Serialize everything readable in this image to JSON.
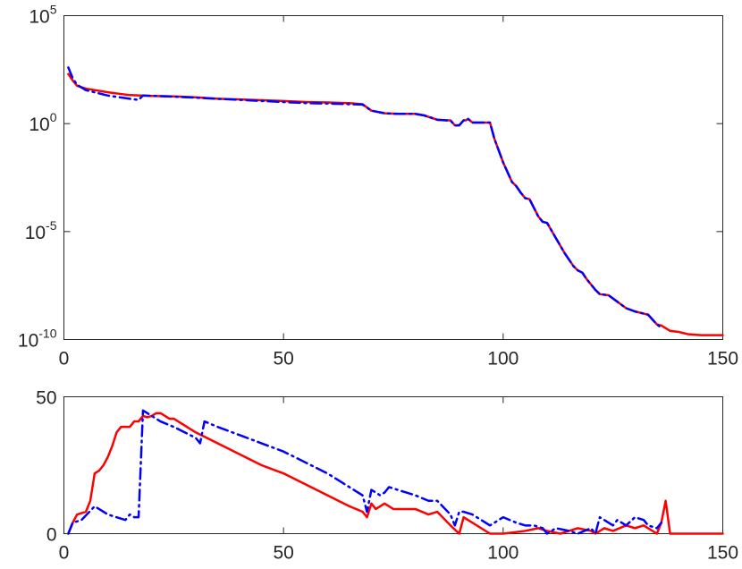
{
  "chart_data": [
    {
      "type": "line",
      "yscale": "log",
      "xlim": [
        0,
        150
      ],
      "ylim_exponent": [
        -10,
        5
      ],
      "x_ticks": [
        "0",
        "50",
        "100",
        "150"
      ],
      "y_ticks": [
        {
          "base": "10",
          "exp": "5"
        },
        {
          "base": "10",
          "exp": "0"
        },
        {
          "base": "10",
          "exp": "-5"
        },
        {
          "base": "10",
          "exp": "-10"
        }
      ],
      "grid": false,
      "series": [
        {
          "color": "#ff0000",
          "style": "solid",
          "points": [
            [
              1,
              2.3
            ],
            [
              2,
              2.0
            ],
            [
              3,
              1.75
            ],
            [
              5,
              1.62
            ],
            [
              10,
              1.45
            ],
            [
              15,
              1.32
            ],
            [
              20,
              1.28
            ],
            [
              25,
              1.26
            ],
            [
              30,
              1.22
            ],
            [
              35,
              1.15
            ],
            [
              40,
              1.12
            ],
            [
              50,
              1.05
            ],
            [
              55,
              1.0
            ],
            [
              60,
              0.98
            ],
            [
              65,
              0.95
            ],
            [
              68,
              0.9
            ],
            [
              70,
              0.6
            ],
            [
              73,
              0.48
            ],
            [
              76,
              0.45
            ],
            [
              80,
              0.45
            ],
            [
              82,
              0.38
            ],
            [
              85,
              0.18
            ],
            [
              87,
              0.15
            ],
            [
              88,
              0.15
            ],
            [
              89,
              -0.08
            ],
            [
              90,
              -0.08
            ],
            [
              91,
              0.15
            ],
            [
              91.5,
              0.15
            ],
            [
              92,
              0.22
            ],
            [
              93,
              0.05
            ],
            [
              97,
              0.05
            ],
            [
              98,
              -0.7
            ],
            [
              100,
              -1.8
            ],
            [
              102,
              -2.7
            ],
            [
              103,
              -2.9
            ],
            [
              104,
              -3.2
            ],
            [
              105,
              -3.45
            ],
            [
              106,
              -3.5
            ],
            [
              107,
              -3.9
            ],
            [
              108,
              -4.3
            ],
            [
              109,
              -4.55
            ],
            [
              110,
              -4.6
            ],
            [
              112,
              -5.3
            ],
            [
              114,
              -6.0
            ],
            [
              116,
              -6.6
            ],
            [
              117,
              -6.8
            ],
            [
              118,
              -6.9
            ],
            [
              119,
              -7.2
            ],
            [
              121,
              -7.7
            ],
            [
              122,
              -7.9
            ],
            [
              124,
              -7.95
            ],
            [
              125,
              -8.1
            ],
            [
              127,
              -8.4
            ],
            [
              128,
              -8.55
            ],
            [
              130,
              -8.7
            ],
            [
              132,
              -8.8
            ],
            [
              133,
              -8.85
            ],
            [
              135,
              -9.3
            ],
            [
              136,
              -9.35
            ],
            [
              138,
              -9.6
            ],
            [
              140,
              -9.65
            ],
            [
              142,
              -9.75
            ],
            [
              145,
              -9.8
            ],
            [
              150,
              -9.8
            ]
          ]
        },
        {
          "color": "#0000ff",
          "style": "dashdot",
          "points": [
            [
              1,
              2.6
            ],
            [
              2,
              2.1
            ],
            [
              3,
              1.8
            ],
            [
              5,
              1.55
            ],
            [
              10,
              1.3
            ],
            [
              15,
              1.15
            ],
            [
              17,
              1.1
            ],
            [
              18,
              1.3
            ],
            [
              25,
              1.25
            ],
            [
              30,
              1.2
            ],
            [
              35,
              1.15
            ],
            [
              40,
              1.1
            ],
            [
              50,
              1.0
            ],
            [
              55,
              0.95
            ],
            [
              60,
              0.93
            ],
            [
              65,
              0.9
            ],
            [
              68,
              0.88
            ],
            [
              70,
              0.6
            ],
            [
              73,
              0.48
            ],
            [
              76,
              0.45
            ],
            [
              80,
              0.45
            ],
            [
              82,
              0.38
            ],
            [
              85,
              0.18
            ],
            [
              87,
              0.15
            ],
            [
              88,
              0.15
            ],
            [
              89,
              -0.08
            ],
            [
              90,
              -0.08
            ],
            [
              91,
              0.15
            ],
            [
              91.5,
              0.15
            ],
            [
              92,
              0.22
            ],
            [
              93,
              0.05
            ],
            [
              97,
              0.05
            ],
            [
              98,
              -0.7
            ],
            [
              100,
              -1.8
            ],
            [
              102,
              -2.7
            ],
            [
              103,
              -2.9
            ],
            [
              104,
              -3.2
            ],
            [
              105,
              -3.45
            ],
            [
              106,
              -3.5
            ],
            [
              107,
              -3.9
            ],
            [
              108,
              -4.3
            ],
            [
              109,
              -4.55
            ],
            [
              110,
              -4.6
            ],
            [
              112,
              -5.3
            ],
            [
              114,
              -6.0
            ],
            [
              116,
              -6.6
            ],
            [
              117,
              -6.8
            ],
            [
              118,
              -6.9
            ],
            [
              119,
              -7.2
            ],
            [
              121,
              -7.7
            ],
            [
              122,
              -7.9
            ],
            [
              124,
              -7.95
            ],
            [
              125,
              -8.1
            ],
            [
              127,
              -8.4
            ],
            [
              128,
              -8.55
            ],
            [
              130,
              -8.7
            ],
            [
              132,
              -8.8
            ],
            [
              133,
              -8.85
            ],
            [
              135,
              -9.3
            ],
            [
              136,
              -9.45
            ]
          ]
        }
      ]
    },
    {
      "type": "line",
      "xlim": [
        0,
        150
      ],
      "ylim": [
        0,
        50
      ],
      "x_ticks": [
        "0",
        "50",
        "100",
        "150"
      ],
      "y_ticks": [
        "0",
        "50"
      ],
      "grid": false,
      "series": [
        {
          "color": "#ff0000",
          "style": "solid",
          "points": [
            [
              1,
              0
            ],
            [
              2,
              4
            ],
            [
              3,
              7
            ],
            [
              5,
              8
            ],
            [
              6,
              12
            ],
            [
              7,
              22
            ],
            [
              8,
              23
            ],
            [
              9,
              25
            ],
            [
              10,
              28
            ],
            [
              11,
              32
            ],
            [
              12,
              37
            ],
            [
              13,
              39
            ],
            [
              15,
              39
            ],
            [
              16,
              41
            ],
            [
              17,
              41
            ],
            [
              18,
              43
            ],
            [
              19,
              42.5
            ],
            [
              20,
              43
            ],
            [
              21,
              44
            ],
            [
              22,
              44
            ],
            [
              24,
              42
            ],
            [
              25,
              42
            ],
            [
              30,
              37
            ],
            [
              35,
              33
            ],
            [
              40,
              29
            ],
            [
              45,
              25
            ],
            [
              50,
              22
            ],
            [
              55,
              18
            ],
            [
              60,
              14
            ],
            [
              65,
              10
            ],
            [
              68,
              8
            ],
            [
              69,
              6
            ],
            [
              70,
              11
            ],
            [
              71,
              9
            ],
            [
              72,
              10
            ],
            [
              73,
              11
            ],
            [
              75,
              9
            ],
            [
              80,
              9
            ],
            [
              83,
              7
            ],
            [
              85,
              8
            ],
            [
              88,
              3
            ],
            [
              90,
              0
            ],
            [
              91,
              6
            ],
            [
              92,
              5
            ],
            [
              97,
              0
            ],
            [
              100,
              0
            ],
            [
              105,
              1
            ],
            [
              108,
              2
            ],
            [
              110,
              1
            ],
            [
              113,
              0
            ],
            [
              115,
              1
            ],
            [
              117,
              2
            ],
            [
              120,
              1
            ],
            [
              121,
              0
            ],
            [
              123,
              2
            ],
            [
              125,
              1
            ],
            [
              128,
              3
            ],
            [
              130,
              2
            ],
            [
              132,
              3
            ],
            [
              135,
              0
            ],
            [
              136,
              4
            ],
            [
              137,
              12
            ],
            [
              138,
              0
            ],
            [
              140,
              0
            ],
            [
              150,
              0
            ]
          ]
        },
        {
          "color": "#0000ff",
          "style": "dashdot",
          "points": [
            [
              1,
              0
            ],
            [
              2,
              4
            ],
            [
              4,
              5
            ],
            [
              7,
              10
            ],
            [
              8,
              9
            ],
            [
              10,
              7
            ],
            [
              12,
              6
            ],
            [
              14,
              5
            ],
            [
              15,
              7
            ],
            [
              16,
              6
            ],
            [
              17,
              6
            ],
            [
              18,
              45
            ],
            [
              19,
              44
            ],
            [
              20,
              43
            ],
            [
              22,
              41
            ],
            [
              25,
              39
            ],
            [
              30,
              35
            ],
            [
              31,
              33
            ],
            [
              32,
              41
            ],
            [
              35,
              39
            ],
            [
              40,
              36
            ],
            [
              45,
              33
            ],
            [
              50,
              30
            ],
            [
              55,
              26
            ],
            [
              60,
              22
            ],
            [
              65,
              17
            ],
            [
              68,
              14
            ],
            [
              69,
              8
            ],
            [
              70,
              16
            ],
            [
              71,
              15
            ],
            [
              72,
              14
            ],
            [
              73,
              15
            ],
            [
              74,
              17
            ],
            [
              76,
              16
            ],
            [
              80,
              14
            ],
            [
              83,
              12
            ],
            [
              85,
              12
            ],
            [
              88,
              7
            ],
            [
              89,
              3
            ],
            [
              90,
              8
            ],
            [
              91,
              8
            ],
            [
              93,
              7
            ],
            [
              97,
              3
            ],
            [
              98,
              4
            ],
            [
              100,
              6
            ],
            [
              103,
              4
            ],
            [
              105,
              3
            ],
            [
              107,
              3
            ],
            [
              109,
              2
            ],
            [
              110,
              0
            ],
            [
              112,
              2
            ],
            [
              115,
              1
            ],
            [
              117,
              0
            ],
            [
              120,
              2
            ],
            [
              121,
              0
            ],
            [
              122,
              6
            ],
            [
              125,
              3
            ],
            [
              126,
              5
            ],
            [
              128,
              3
            ],
            [
              130,
              6
            ],
            [
              132,
              5
            ],
            [
              133,
              3
            ],
            [
              135,
              2
            ],
            [
              136,
              4
            ]
          ]
        }
      ]
    }
  ]
}
